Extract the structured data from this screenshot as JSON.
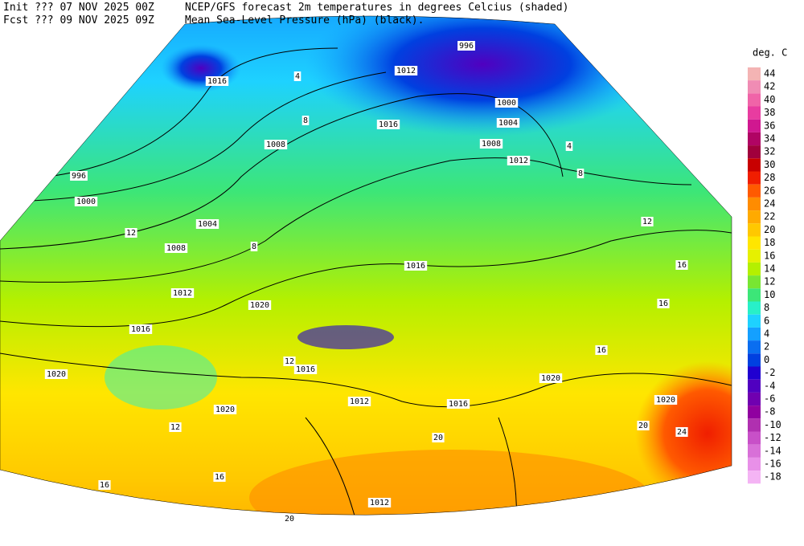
{
  "header": {
    "init": "Init  ??? 07 NOV 2025 00Z",
    "fcst": "Fcst ??? 09 NOV 2025 09Z",
    "title_line1": "NCEP/GFS forecast 2m temperatures in degrees Celcius (shaded)",
    "title_line2": "Mean Sea-Level Pressure (hPa) (black)."
  },
  "legend": {
    "title": "deg. C",
    "levels": [
      {
        "label": "44",
        "color": "#f4b4b4"
      },
      {
        "label": "42",
        "color": "#f08cb4"
      },
      {
        "label": "40",
        "color": "#f064a8"
      },
      {
        "label": "38",
        "color": "#e83ca0"
      },
      {
        "label": "36",
        "color": "#d01890"
      },
      {
        "label": "34",
        "color": "#b00464"
      },
      {
        "label": "32",
        "color": "#a0003c"
      },
      {
        "label": "30",
        "color": "#c80000"
      },
      {
        "label": "28",
        "color": "#f01e00"
      },
      {
        "label": "26",
        "color": "#ff5a00"
      },
      {
        "label": "24",
        "color": "#ff8c00"
      },
      {
        "label": "22",
        "color": "#ffaa00"
      },
      {
        "label": "20",
        "color": "#ffc800"
      },
      {
        "label": "18",
        "color": "#ffe600"
      },
      {
        "label": "16",
        "color": "#e6f000"
      },
      {
        "label": "14",
        "color": "#b4f000"
      },
      {
        "label": "12",
        "color": "#78e632"
      },
      {
        "label": "10",
        "color": "#3ce678"
      },
      {
        "label": "8",
        "color": "#28f0c8"
      },
      {
        "label": "6",
        "color": "#1ed2ff"
      },
      {
        "label": "4",
        "color": "#14a0ff"
      },
      {
        "label": "2",
        "color": "#0a6ef0"
      },
      {
        "label": "0",
        "color": "#0040e0"
      },
      {
        "label": "-2",
        "color": "#2000d0"
      },
      {
        "label": "-4",
        "color": "#5000c0"
      },
      {
        "label": "-6",
        "color": "#7000b0"
      },
      {
        "label": "-8",
        "color": "#9000a0"
      },
      {
        "label": "-10",
        "color": "#b030b0"
      },
      {
        "label": "-12",
        "color": "#c850c8"
      },
      {
        "label": "-14",
        "color": "#d870d8"
      },
      {
        "label": "-16",
        "color": "#e890e8"
      },
      {
        "label": "-18",
        "color": "#f4b4f4"
      }
    ]
  },
  "isobar_labels": [
    "996",
    "1012",
    "1016",
    "1000",
    "1004",
    "1016",
    "1008",
    "1008",
    "1012",
    "996",
    "1000",
    "1004",
    "1008",
    "1016",
    "1012",
    "1020",
    "1016",
    "1016",
    "1020",
    "1020",
    "1020",
    "1012",
    "1016",
    "1020",
    "1012"
  ],
  "temperature_labels": [
    "4",
    "8",
    "12",
    "8",
    "12",
    "16",
    "16",
    "16",
    "12",
    "20",
    "16",
    "20",
    "16",
    "20",
    "24",
    "12",
    "4",
    "8"
  ]
}
